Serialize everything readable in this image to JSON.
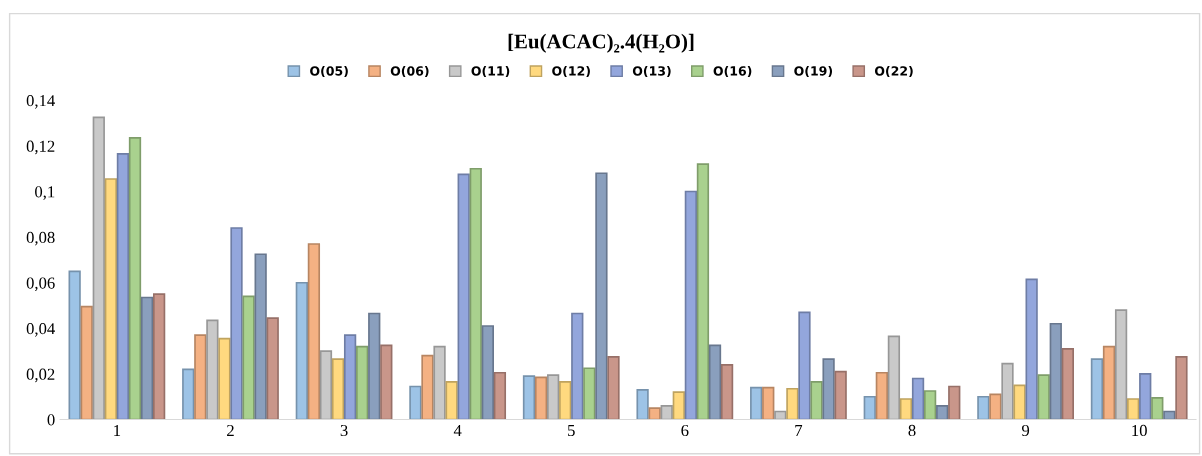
{
  "chart_data": {
    "type": "bar",
    "title": "[Eu(ACAC)₂.4(H₂O)]",
    "categories": [
      "1",
      "2",
      "3",
      "4",
      "5",
      "6",
      "7",
      "8",
      "9",
      "10"
    ],
    "series": [
      {
        "name": "O(05)",
        "color": "#9dc3e6",
        "values": [
          0.065,
          0.022,
          0.06,
          0.0145,
          0.019,
          0.013,
          0.014,
          0.01,
          0.01,
          0.0265
        ]
      },
      {
        "name": "O(06)",
        "color": "#f4b183",
        "values": [
          0.0495,
          0.037,
          0.077,
          0.028,
          0.0185,
          0.005,
          0.014,
          0.0205,
          0.011,
          0.032
        ]
      },
      {
        "name": "O(11)",
        "color": "#c9c9c9",
        "values": [
          0.1325,
          0.0435,
          0.03,
          0.032,
          0.0195,
          0.006,
          0.0035,
          0.0365,
          0.0245,
          0.048
        ]
      },
      {
        "name": "O(12)",
        "color": "#ffd97f",
        "values": [
          0.1055,
          0.0355,
          0.0265,
          0.0165,
          0.0165,
          0.012,
          0.0135,
          0.009,
          0.015,
          0.009
        ]
      },
      {
        "name": "O(13)",
        "color": "#93a6dc",
        "values": [
          0.1165,
          0.084,
          0.037,
          0.1075,
          0.0465,
          0.1,
          0.047,
          0.018,
          0.0615,
          0.02
        ]
      },
      {
        "name": "O(16)",
        "color": "#a9d18e",
        "values": [
          0.1235,
          0.054,
          0.032,
          0.11,
          0.0225,
          0.112,
          0.0165,
          0.0125,
          0.0195,
          0.0095
        ]
      },
      {
        "name": "O(19)",
        "color": "#8a9fbd",
        "values": [
          0.0535,
          0.0725,
          0.0465,
          0.041,
          0.108,
          0.0325,
          0.0265,
          0.006,
          0.042,
          0.0035
        ]
      },
      {
        "name": "O(22)",
        "color": "#c9968a",
        "values": [
          0.055,
          0.0445,
          0.0325,
          0.0205,
          0.0275,
          0.024,
          0.021,
          0.0145,
          0.031,
          0.0275
        ]
      }
    ],
    "ylim": [
      0,
      0.14
    ],
    "yticks": [
      {
        "value": 0,
        "label": "0"
      },
      {
        "value": 0.02,
        "label": "0,02"
      },
      {
        "value": 0.04,
        "label": "0,04"
      },
      {
        "value": 0.06,
        "label": "0,06"
      },
      {
        "value": 0.08,
        "label": "0,08"
      },
      {
        "value": 0.1,
        "label": "0,1"
      },
      {
        "value": 0.12,
        "label": "0,12"
      },
      {
        "value": 0.14,
        "label": "0,14"
      }
    ],
    "grid": false,
    "legend": "top"
  }
}
